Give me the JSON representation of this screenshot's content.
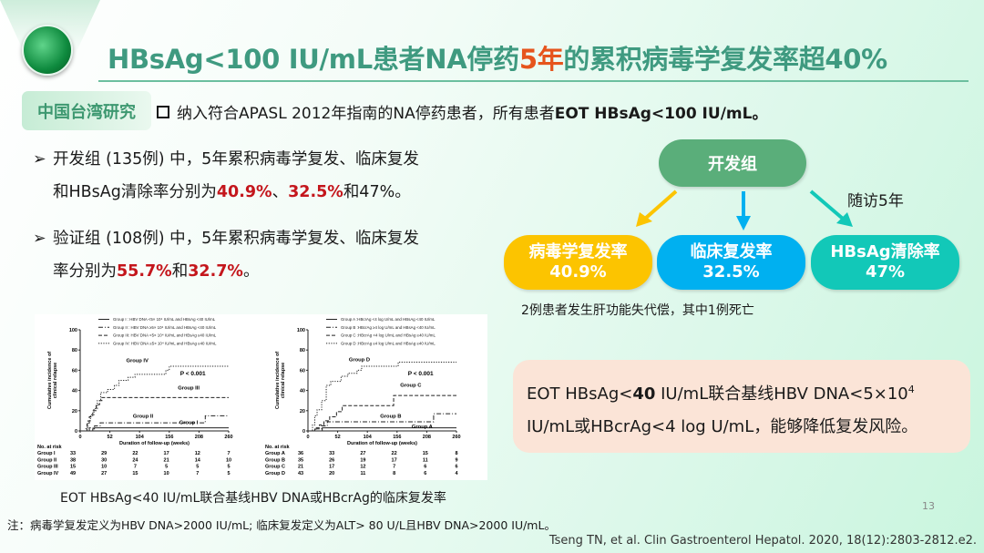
{
  "header": {
    "title_part1": "HBsAg<100 IU/mL患者NA停药",
    "title_highlight": "5年",
    "title_part2": "的累积病毒学复发率超40%",
    "logo_icon": "liver-logo-icon"
  },
  "tag": "中国台湾研究",
  "intro": {
    "text": "纳入符合APASL 2012年指南的NA停药患者，所有患者",
    "bold": "EOT HBsAg<100 IU/mL。"
  },
  "bullets": [
    {
      "marker": "➢",
      "line1": "开发组 (135例) 中，5年累积病毒学复发、临床复发",
      "line2_pre": "和HBsAg清除率分别为",
      "v1": "40.9%",
      "sep": "、",
      "v2": "32.5%",
      "line2_post": "和47%。"
    },
    {
      "marker": "➢",
      "line1": "验证组 (108例) 中，5年累积病毒学复发、临床复发",
      "line2_pre": "率分别为",
      "v1": "55.7%",
      "sep": "和",
      "v2": "32.7%",
      "line2_post": "。"
    }
  ],
  "diagram": {
    "root": "开发组",
    "follow": "随访5年",
    "results": [
      {
        "label": "病毒学复发率",
        "value": "40.9%",
        "color": "#fcc400"
      },
      {
        "label": "临床复发率",
        "value": "32.5%",
        "color": "#00b0f0"
      },
      {
        "label": "HBsAg清除率",
        "value": "47%",
        "color": "#12c8b8"
      }
    ],
    "note": "2例患者发生肝功能失代偿，其中1例死亡"
  },
  "conclusion": {
    "l1_pre": "EOT HBsAg<",
    "l1_bold": "40",
    "l1_post": " IU/mL联合基线HBV DNA<5×10",
    "sup": "4",
    "l2": "IU/mL或HBcrAg<4 log U/mL，能够降低复发风险。"
  },
  "caption": "EOT HBsAg<40 IU/mL联合基线HBV DNA或HBcrAg的临床复发率",
  "footnote": "注：病毒学复发定义为HBV DNA>2000 IU/mL; 临床复发定义为ALT> 80 U/L且HBV DNA>2000 IU/mL。",
  "page_number": "13",
  "citation": "Tseng TN, et al. Clin Gastroenterol Hepatol. 2020, 18(12):2803-2812.e2.",
  "chart_data": [
    {
      "type": "line",
      "ylabel": "Cumulative incidence of clinical relapse",
      "xlabel": "Duration of follow-up (weeks)",
      "xlim": [
        0,
        260
      ],
      "ylim": [
        0,
        100
      ],
      "xticks": [
        0,
        52,
        104,
        156,
        208,
        260
      ],
      "yticks": [
        0,
        20,
        40,
        60,
        80,
        100
      ],
      "annotation": "P < 0.001",
      "legend": "top-right",
      "series": [
        {
          "name": "Group I : HBV DNA <5× 10⁴ IU/mL and HBsAg <40 IU/mL",
          "label": "Group I",
          "style": "solid",
          "points": [
            [
              0,
              0
            ],
            [
              22,
              0
            ],
            [
              22,
              2
            ],
            [
              25,
              2
            ],
            [
              25,
              3
            ],
            [
              260,
              3
            ]
          ]
        },
        {
          "name": "Group II : HBV DNA ≥5× 10⁴ IU/mL and HBsAg <40 IU/mL",
          "label": "Group II",
          "style": "dashdot",
          "points": [
            [
              0,
              0
            ],
            [
              16,
              0
            ],
            [
              16,
              3
            ],
            [
              25,
              3
            ],
            [
              25,
              5
            ],
            [
              35,
              5
            ],
            [
              35,
              8
            ],
            [
              219,
              8
            ],
            [
              219,
              15
            ],
            [
              260,
              15
            ]
          ]
        },
        {
          "name": "Group III: HBV DNA <5× 10⁴ IU/mL and HBsAg ≥40 IU/mL",
          "label": "Group III",
          "style": "dashed",
          "points": [
            [
              0,
              0
            ],
            [
              12,
              0
            ],
            [
              12,
              7
            ],
            [
              16,
              7
            ],
            [
              16,
              14
            ],
            [
              22,
              14
            ],
            [
              22,
              20
            ],
            [
              28,
              20
            ],
            [
              28,
              26
            ],
            [
              34,
              26
            ],
            [
              34,
              30
            ],
            [
              38,
              30
            ],
            [
              38,
              33
            ],
            [
              260,
              33
            ]
          ]
        },
        {
          "name": "Group IV: HBV DNA ≥5× 10⁴ IU/mL and HBsAg ≥40 IU/mL",
          "label": "Group IV",
          "style": "dotted",
          "points": [
            [
              0,
              0
            ],
            [
              10,
              0
            ],
            [
              10,
              3
            ],
            [
              14,
              3
            ],
            [
              14,
              10
            ],
            [
              18,
              10
            ],
            [
              18,
              16
            ],
            [
              24,
              16
            ],
            [
              24,
              22
            ],
            [
              30,
              22
            ],
            [
              30,
              30
            ],
            [
              36,
              30
            ],
            [
              36,
              38
            ],
            [
              48,
              38
            ],
            [
              48,
              41
            ],
            [
              60,
              41
            ],
            [
              60,
              45
            ],
            [
              68,
              45
            ],
            [
              68,
              50
            ],
            [
              84,
              50
            ],
            [
              84,
              53
            ],
            [
              96,
              53
            ],
            [
              96,
              56
            ],
            [
              150,
              56
            ],
            [
              150,
              60
            ],
            [
              156,
              60
            ],
            [
              156,
              64
            ],
            [
              260,
              64
            ]
          ]
        }
      ],
      "risk_table": {
        "title": "No. at risk",
        "rows": [
          {
            "group": "Group I",
            "values": [
              33,
              29,
              22,
              17,
              12,
              7
            ]
          },
          {
            "group": "Group II",
            "values": [
              38,
              30,
              24,
              21,
              14,
              10
            ]
          },
          {
            "group": "Group III",
            "values": [
              15,
              10,
              7,
              5,
              5,
              5
            ]
          },
          {
            "group": "Group IV",
            "values": [
              49,
              27,
              15,
              10,
              7,
              5
            ]
          }
        ]
      }
    },
    {
      "type": "line",
      "ylabel": "Cumulative incidence of clinical relapse",
      "xlabel": "Duration of follow-up (weeks)",
      "xlim": [
        0,
        260
      ],
      "ylim": [
        0,
        100
      ],
      "xticks": [
        0,
        52,
        104,
        156,
        208,
        260
      ],
      "yticks": [
        0,
        20,
        40,
        60,
        80,
        100
      ],
      "annotation": "P < 0.001",
      "legend": "top-right",
      "series": [
        {
          "name": "Group A :HBcrAg <4 log U/mL and HBsAg <40 IU/mL",
          "label": "Group A",
          "style": "solid",
          "points": [
            [
              0,
              0
            ],
            [
              25,
              0
            ],
            [
              25,
              3
            ],
            [
              260,
              3
            ]
          ]
        },
        {
          "name": "Group B :HBcrAg ≥4 log U/mL and HBsAg <40 IU/mL",
          "label": "Group B",
          "style": "dashdot",
          "points": [
            [
              0,
              0
            ],
            [
              14,
              0
            ],
            [
              14,
              2
            ],
            [
              24,
              2
            ],
            [
              24,
              5
            ],
            [
              34,
              5
            ],
            [
              34,
              9
            ],
            [
              220,
              9
            ],
            [
              220,
              17
            ],
            [
              260,
              17
            ]
          ]
        },
        {
          "name": "Group C :HBcrAg <4 log U/mL and HBsAg ≥40 IU/mL",
          "label": "Group C",
          "style": "dashed",
          "points": [
            [
              0,
              0
            ],
            [
              12,
              0
            ],
            [
              12,
              3
            ],
            [
              20,
              3
            ],
            [
              20,
              6
            ],
            [
              28,
              6
            ],
            [
              28,
              10
            ],
            [
              38,
              10
            ],
            [
              38,
              14
            ],
            [
              50,
              14
            ],
            [
              50,
              19
            ],
            [
              60,
              19
            ],
            [
              60,
              25
            ],
            [
              150,
              25
            ],
            [
              150,
              35
            ],
            [
              260,
              35
            ]
          ]
        },
        {
          "name": "Group D :HBcrAg ≥4 log U/mL and HBsAg ≥40 IU/mL",
          "label": "Group D",
          "style": "dotted",
          "points": [
            [
              0,
              0
            ],
            [
              8,
              0
            ],
            [
              8,
              6
            ],
            [
              12,
              6
            ],
            [
              12,
              15
            ],
            [
              16,
              15
            ],
            [
              16,
              21
            ],
            [
              24,
              21
            ],
            [
              24,
              30
            ],
            [
              32,
              30
            ],
            [
              32,
              45
            ],
            [
              40,
              45
            ],
            [
              40,
              49
            ],
            [
              58,
              49
            ],
            [
              58,
              54
            ],
            [
              70,
              54
            ],
            [
              70,
              57
            ],
            [
              86,
              57
            ],
            [
              86,
              60
            ],
            [
              94,
              60
            ],
            [
              94,
              64
            ],
            [
              158,
              64
            ],
            [
              158,
              68
            ],
            [
              260,
              68
            ]
          ]
        }
      ],
      "risk_table": {
        "title": "No. at risk",
        "rows": [
          {
            "group": "Group A",
            "values": [
              36,
              33,
              27,
              22,
              15,
              8
            ]
          },
          {
            "group": "Group B",
            "values": [
              35,
              26,
              19,
              17,
              11,
              9
            ]
          },
          {
            "group": "Group C",
            "values": [
              21,
              17,
              12,
              7,
              6,
              6
            ]
          },
          {
            "group": "Group D",
            "values": [
              43,
              20,
              11,
              8,
              6,
              4
            ]
          }
        ]
      }
    }
  ]
}
